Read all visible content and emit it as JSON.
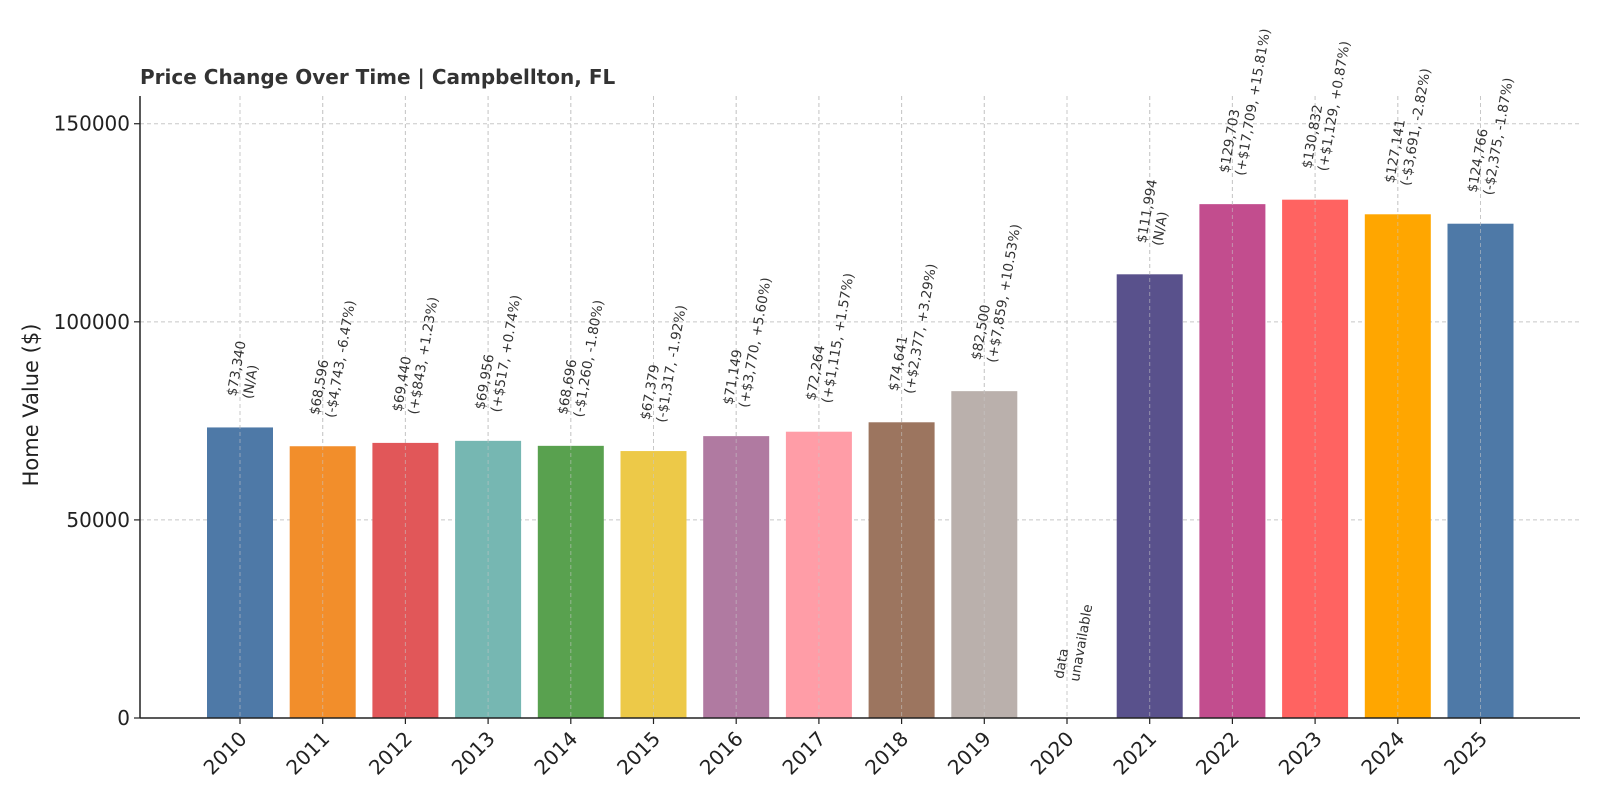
{
  "chart_data": {
    "type": "bar",
    "title": "Price Change Over Time | Campbellton, FL",
    "xlabel": "",
    "ylabel": "Home Value ($)",
    "ylim": [
      0,
      157000
    ],
    "yticks": [
      0,
      50000,
      100000,
      150000
    ],
    "grid": true,
    "categories": [
      "2010",
      "2011",
      "2012",
      "2013",
      "2014",
      "2015",
      "2016",
      "2017",
      "2018",
      "2019",
      "2020",
      "2021",
      "2022",
      "2023",
      "2024",
      "2025"
    ],
    "values": [
      73340,
      68596,
      69440,
      69956,
      68696,
      67379,
      71149,
      72264,
      74641,
      82500,
      null,
      111994,
      129703,
      130832,
      127141,
      124766
    ],
    "colors": [
      "#4e79a7",
      "#f28e2b",
      "#e15759",
      "#76b7b2",
      "#59a14f",
      "#edc948",
      "#b07aa1",
      "#ff9da7",
      "#9c755f",
      "#bab0ac",
      "#cccccc",
      "#59518c",
      "#c24d8e",
      "#ff6361",
      "#ffa600",
      "#4e79a7"
    ],
    "labels": [
      [
        "$73,340",
        "(N/A)"
      ],
      [
        "$68,596",
        "(-$4,743, -6.47%)"
      ],
      [
        "$69,440",
        "(+$843, +1.23%)"
      ],
      [
        "$69,956",
        "(+$517, +0.74%)"
      ],
      [
        "$68,696",
        "(-$1,260, -1.80%)"
      ],
      [
        "$67,379",
        "(-$1,317, -1.92%)"
      ],
      [
        "$71,149",
        "(+$3,770, +5.60%)"
      ],
      [
        "$72,264",
        "(+$1,115, +1.57%)"
      ],
      [
        "$74,641",
        "(+$2,377, +3.29%)"
      ],
      [
        "$82,500",
        "(+$7,859, +10.53%)"
      ],
      [
        "data",
        "unavailable"
      ],
      [
        "$111,994",
        "(N/A)"
      ],
      [
        "$129,703",
        "(+$17,709, +15.81%)"
      ],
      [
        "$130,832",
        "(+$1,129, +0.87%)"
      ],
      [
        "$127,141",
        "(-$3,691, -2.82%)"
      ],
      [
        "$124,766",
        "(-$2,375, -1.87%)"
      ]
    ]
  }
}
